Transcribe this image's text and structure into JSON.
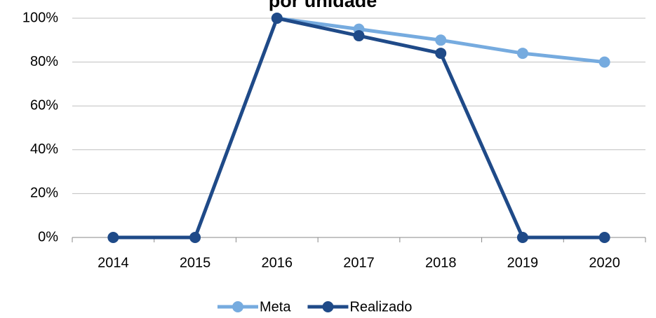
{
  "chart_data": {
    "type": "line",
    "title": "por unidade",
    "categories": [
      "2014",
      "2015",
      "2016",
      "2017",
      "2018",
      "2019",
      "2020"
    ],
    "series": [
      {
        "name": "Meta",
        "color": "#76abdf",
        "values": [
          null,
          null,
          100,
          95,
          90,
          84,
          80
        ]
      },
      {
        "name": "Realizado",
        "color": "#1f4a88",
        "values": [
          0,
          0,
          100,
          92,
          84,
          0,
          0
        ]
      }
    ],
    "ylim": [
      0,
      100
    ],
    "yticks": [
      {
        "value": 0,
        "label": "0%"
      },
      {
        "value": 20,
        "label": "20%"
      },
      {
        "value": 40,
        "label": "40%"
      },
      {
        "value": 60,
        "label": "60%"
      },
      {
        "value": 80,
        "label": "80%"
      },
      {
        "value": 100,
        "label": "100%"
      }
    ],
    "grid": true,
    "legend": "bottom"
  }
}
